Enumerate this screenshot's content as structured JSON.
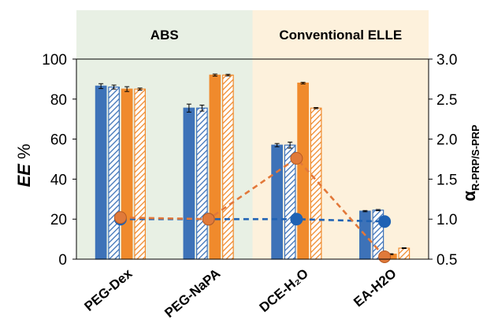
{
  "chart_data": {
    "type": "bar",
    "categories": [
      "PEG-Dex",
      "PEG-NaPA",
      "DCE-H₂O",
      "EA-H2O"
    ],
    "regions": [
      {
        "label": "ABS",
        "from": 0,
        "to": 1
      },
      {
        "label": "Conventional ELLE",
        "from": 2,
        "to": 3
      }
    ],
    "ylabel_main": "EE",
    "ylabel_unit": " %",
    "ylabel_right_symbol": "α",
    "ylabel_right_sub": "R-PRP/S-PRP",
    "ylim_left": [
      0,
      100
    ],
    "ylim_right": [
      0.5,
      3.0
    ],
    "yticks_left": [
      "0",
      "20",
      "40",
      "60",
      "80",
      "100"
    ],
    "yticks_right": [
      "0.5",
      "1.0",
      "1.5",
      "2.0",
      "2.5",
      "3.0"
    ],
    "bar_series": [
      {
        "values": [
          86.5,
          75.5,
          57,
          24
        ],
        "errors": [
          1.2,
          2,
          0.8,
          0.3
        ],
        "color": "#3d72b8",
        "pattern": "solid"
      },
      {
        "values": [
          86,
          75.5,
          57,
          24.5
        ],
        "errors": [
          1,
          1.5,
          1.5,
          0.3
        ],
        "color": "#3d72b8",
        "pattern": "hatched"
      },
      {
        "values": [
          85,
          92,
          88,
          2.5
        ],
        "errors": [
          1.2,
          0.5,
          0.4,
          0.2
        ],
        "color": "#f08a2c",
        "pattern": "solid"
      },
      {
        "values": [
          85,
          92,
          75.5,
          5.5
        ],
        "errors": [
          0.5,
          0.4,
          0.3,
          0.2
        ],
        "color": "#f08a2c",
        "pattern": "hatched"
      }
    ],
    "line_series": [
      {
        "axis": "right",
        "values": [
          1.0,
          1.0,
          1.0,
          0.97
        ],
        "color": "#1f62b4",
        "style": "dashed"
      },
      {
        "axis": "right",
        "values": [
          1.02,
          1.0,
          1.76,
          0.53
        ],
        "color": "#e2783a",
        "style": "dashed"
      }
    ],
    "colors": {
      "region_abs": "#e8f0e4",
      "region_elle": "#fdf1dc",
      "blue": "#3d72b8",
      "orange": "#f08a2c"
    }
  }
}
